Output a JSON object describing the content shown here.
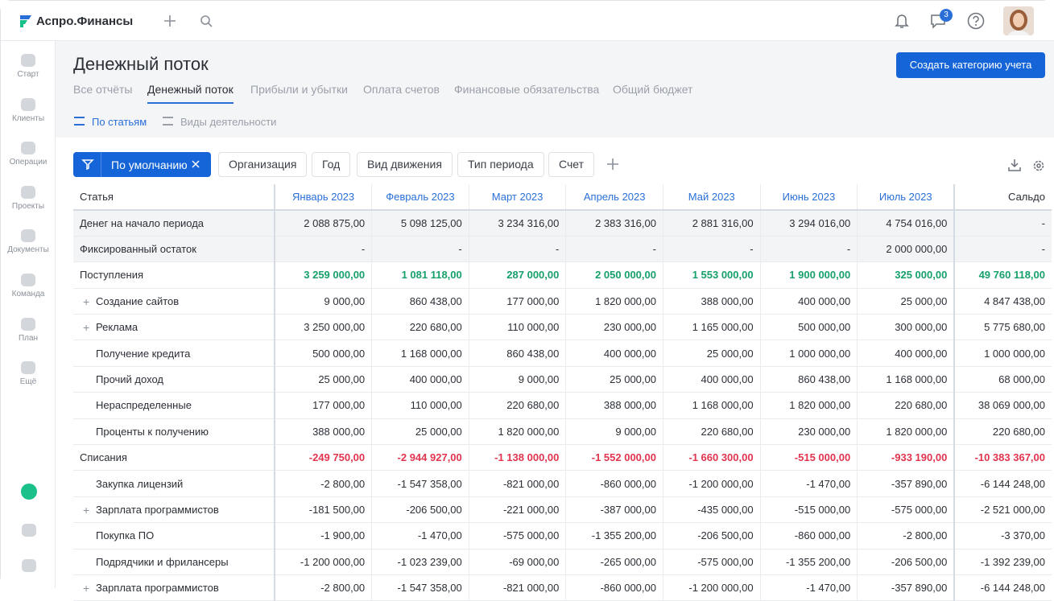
{
  "app": {
    "logo": "Аспро.Финансы",
    "badge": "3"
  },
  "sidebar": {
    "items": [
      "Старт",
      "Клиенты",
      "Операции",
      "Проекты",
      "Документы",
      "Команда",
      "План",
      "Ещё"
    ]
  },
  "header": {
    "title": "Денежный поток",
    "button": "Создать категорию учета",
    "tabs": [
      "Все отчёты",
      "Денежный поток",
      "Прибыли и убытки",
      "Оплата счетов",
      "Финансовые обязательства",
      "Общий бюджет"
    ],
    "active_tab": 1,
    "subtabs": [
      "По статьям",
      "Виды деятельности"
    ],
    "active_subtab": 0
  },
  "filters": {
    "preset": "По умолчанию",
    "items": [
      "Организация",
      "Год",
      "Вид движения",
      "Тип периода",
      "Счет"
    ]
  },
  "table": {
    "columns": [
      "Статья",
      "Январь 2023",
      "Февраль 2023",
      "Март 2023",
      "Апрель 2023",
      "Май 2023",
      "Июнь 2023",
      "Июль 2023",
      "Сальдо"
    ],
    "rows": [
      {
        "label": "Денег на начало периода",
        "kind": "balance",
        "values": [
          "2 088 875,00",
          "5 098 125,00",
          "3 234 316,00",
          "2 383 316,00",
          "2 881 316,00",
          "3 294 016,00",
          "4 754 016,00",
          "-"
        ]
      },
      {
        "label": "Фиксированный остаток",
        "kind": "balance",
        "values": [
          "-",
          "-",
          "-",
          "-",
          "-",
          "-",
          "2 000 000,00",
          "-"
        ]
      },
      {
        "label": "Поступления",
        "kind": "income",
        "values": [
          "3 259 000,00",
          "1 081 118,00",
          "287 000,00",
          "2 050 000,00",
          "1 553 000,00",
          "1 900 000,00",
          "325 000,00",
          "49 760 118,00"
        ]
      },
      {
        "label": "Создание сайтов",
        "kind": "item",
        "expand": true,
        "values": [
          "9 000,00",
          "860 438,00",
          "177 000,00",
          "1 820 000,00",
          "388 000,00",
          "400 000,00",
          "25 000,00",
          "4 847 438,00"
        ]
      },
      {
        "label": "Реклама",
        "kind": "item",
        "expand": true,
        "values": [
          "3 250 000,00",
          "220 680,00",
          "110 000,00",
          "230 000,00",
          "1 165 000,00",
          "500 000,00",
          "300 000,00",
          "5 775 680,00"
        ]
      },
      {
        "label": "Получение кредита",
        "kind": "item",
        "values": [
          "500 000,00",
          "1 168 000,00",
          "860 438,00",
          "400 000,00",
          "25 000,00",
          "1 000 000,00",
          "400 000,00",
          "1 000 000,00"
        ]
      },
      {
        "label": "Прочий доход",
        "kind": "item",
        "values": [
          "25 000,00",
          "400 000,00",
          "9 000,00",
          "25 000,00",
          "400 000,00",
          "860 438,00",
          "1 168 000,00",
          "68 000,00"
        ]
      },
      {
        "label": "Нераспределенные",
        "kind": "item",
        "values": [
          "177 000,00",
          "110 000,00",
          "220 680,00",
          "388 000,00",
          "1 168 000,00",
          "1 820 000,00",
          "220 680,00",
          "38 069 000,00"
        ]
      },
      {
        "label": "Проценты к получению",
        "kind": "item",
        "values": [
          "388 000,00",
          "25 000,00",
          "1 820 000,00",
          "9 000,00",
          "220 680,00",
          "230 000,00",
          "1 820 000,00",
          "220 680,00"
        ]
      },
      {
        "label": "Списания",
        "kind": "expense",
        "values": [
          "-249 750,00",
          "-2 944 927,00",
          "-1 138 000,00",
          "-1 552 000,00",
          "-1 660 300,00",
          "-515 000,00",
          "-933 190,00",
          "-10 383 367,00"
        ]
      },
      {
        "label": "Закупка лицензий",
        "kind": "item",
        "values": [
          "-2 800,00",
          "-1 547 358,00",
          "-821 000,00",
          "-860 000,00",
          "-1 200 000,00",
          "-1 470,00",
          "-357 890,00",
          "-6 144 248,00"
        ]
      },
      {
        "label": "Зарплата программистов",
        "kind": "item",
        "expand": true,
        "values": [
          "-181 500,00",
          "-206 500,00",
          "-221 000,00",
          "-387 000,00",
          "-435 000,00",
          "-515 000,00",
          "-575 000,00",
          "-2 521 000,00"
        ]
      },
      {
        "label": "Покупка ПО",
        "kind": "item",
        "values": [
          "-1 900,00",
          "-1 470,00",
          "-575 000,00",
          "-1 355 200,00",
          "-206 500,00",
          "-860 000,00",
          "-2 800,00",
          "-3 370,00"
        ]
      },
      {
        "label": "Подрядчики и фрилансеры",
        "kind": "item",
        "values": [
          "-1 200 000,00",
          "-1 023 239,00",
          "-69 000,00",
          "-265 000,00",
          "-575 000,00",
          "-1 355 200,00",
          "-206 500,00",
          "-1 392 239,00"
        ]
      },
      {
        "label": "Зарплата программистов",
        "kind": "item",
        "expand": true,
        "values": [
          "-2 800,00",
          "-1 547 358,00",
          "-821 000,00",
          "-860 000,00",
          "-1 200 000,00",
          "-1 470,00",
          "-357 890,00",
          "-6 144 248,00"
        ]
      }
    ]
  }
}
